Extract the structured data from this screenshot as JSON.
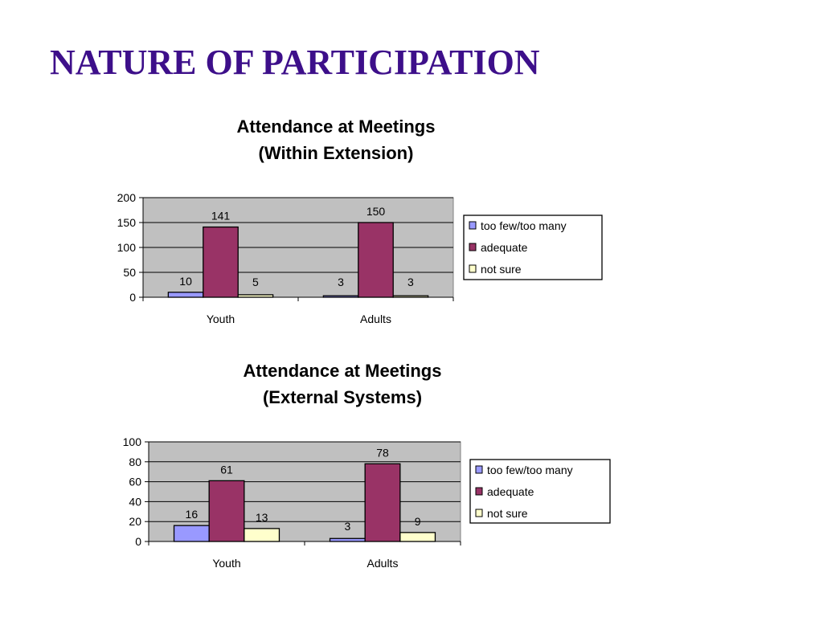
{
  "slide": {
    "title": "NATURE OF PARTICIPATION"
  },
  "chart_data": [
    {
      "type": "bar",
      "title": "Attendance at Meetings",
      "subtitle": "(Within Extension)",
      "categories": [
        "Youth",
        "Adults"
      ],
      "series": [
        {
          "name": "too few/too many",
          "values": [
            10,
            3
          ],
          "color": "#9999ff"
        },
        {
          "name": "adequate",
          "values": [
            141,
            150
          ],
          "color": "#993366"
        },
        {
          "name": "not sure",
          "values": [
            5,
            3
          ],
          "color": "#ffffcc"
        }
      ],
      "ylim": [
        0,
        200
      ],
      "yticks": [
        0,
        50,
        100,
        150,
        200
      ],
      "grid": true,
      "plot_background": "#c0c0c0",
      "legend": "right",
      "xlabel": "",
      "ylabel": ""
    },
    {
      "type": "bar",
      "title": "Attendance at Meetings",
      "subtitle": "(External Systems)",
      "categories": [
        "Youth",
        "Adults"
      ],
      "series": [
        {
          "name": "too few/too many",
          "values": [
            16,
            3
          ],
          "color": "#9999ff"
        },
        {
          "name": "adequate",
          "values": [
            61,
            78
          ],
          "color": "#993366"
        },
        {
          "name": "not sure",
          "values": [
            13,
            9
          ],
          "color": "#ffffcc"
        }
      ],
      "ylim": [
        0,
        100
      ],
      "yticks": [
        0,
        20,
        40,
        60,
        80,
        100
      ],
      "grid": true,
      "plot_background": "#c0c0c0",
      "legend": "right",
      "xlabel": "",
      "ylabel": ""
    }
  ]
}
